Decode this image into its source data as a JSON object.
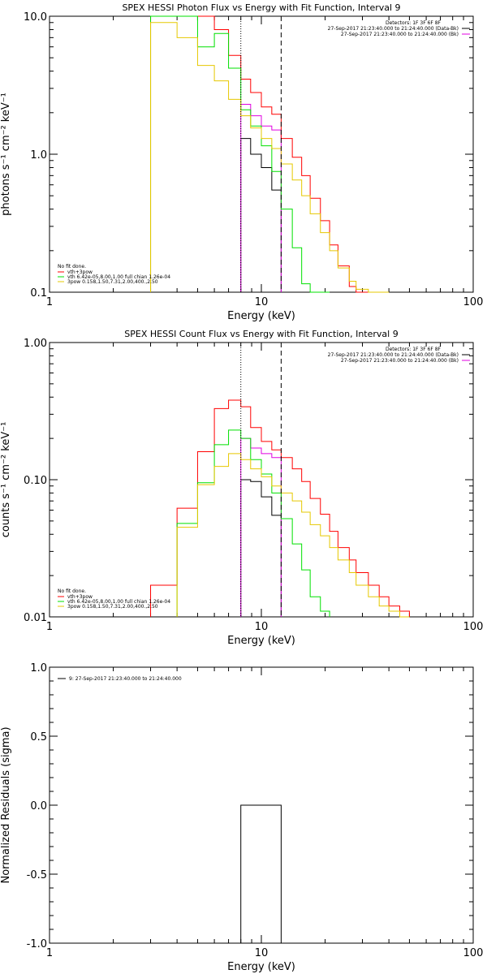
{
  "figure": {
    "background": "#ffffff",
    "colors": {
      "black": "#000000",
      "red": "#ff0000",
      "green": "#00e000",
      "yellow": "#e6c800",
      "magenta": "#e000e0"
    }
  },
  "chart_data": [
    {
      "type": "line",
      "style": "histogram",
      "title": "SPEX HESSI Photon Flux vs Energy with Fit Function, Interval 9",
      "xlabel": "Energy (keV)",
      "ylabel": "photons s⁻¹ cm⁻² keV⁻¹",
      "xscale": "log",
      "yscale": "log",
      "xlim": [
        1,
        100
      ],
      "ylim": [
        0.1,
        10
      ],
      "xticks": [
        1,
        10,
        100
      ],
      "xtick_labels": [
        "1",
        "10",
        "100"
      ],
      "yticks": [
        0.1,
        1,
        10
      ],
      "ytick_labels": [
        "0.1",
        "1.0",
        "10.0"
      ],
      "fit_range_markers": [
        {
          "x": 8,
          "style": "dotted",
          "color": "#000000"
        },
        {
          "x": 12.4,
          "style": "dashed",
          "color": "#000000"
        }
      ],
      "header_text": {
        "detectors": "Detectors: 1F 3F 6F 8F",
        "lines": [
          {
            "text": "27-Sep-2017 21:23:40.000 to 21:24:40.000 (Data-Bk)",
            "color": "#000000"
          },
          {
            "text": "27-Sep-2017 21:23:40.000 to 21:24:40.000 (Bk)",
            "color": "#e000e0"
          }
        ]
      },
      "notes": {
        "status": "No fit done.",
        "lines": [
          {
            "text": "vth+3pow",
            "color": "#ff0000"
          },
          {
            "text": "vth 6.42e-05,8.00,1.00  full chian 1.26e-04",
            "color": "#00e000"
          },
          {
            "text": "3pow 0.158,1.50,7.31,2.00,400.,2.50",
            "color": "#e6c800"
          }
        ]
      },
      "series": [
        {
          "id": "data",
          "color": "#000000",
          "edges": [
            8.0,
            8.9,
            10.0,
            11.2,
            12.4
          ],
          "values": [
            1.3,
            1.0,
            0.8,
            0.55
          ]
        },
        {
          "id": "bk",
          "color": "#e000e0",
          "edges": [
            8.0,
            8.9,
            10.0,
            11.2,
            12.4
          ],
          "values": [
            2.3,
            1.9,
            1.6,
            1.5
          ]
        },
        {
          "id": "total",
          "color": "#ff0000",
          "edges": [
            3.0,
            4.0,
            5.0,
            6.0,
            7.0,
            8.0,
            8.9,
            10.0,
            11.2,
            12.4,
            14.0,
            15.5,
            17.0,
            19.0,
            21.0,
            23.0,
            26.0,
            28.0,
            32.0,
            36.0,
            40.0
          ],
          "values": [
            10.5,
            10.5,
            10.5,
            8.0,
            5.2,
            3.5,
            2.8,
            2.2,
            1.95,
            1.3,
            0.95,
            0.7,
            0.48,
            0.33,
            0.22,
            0.155,
            0.11,
            0.1,
            0.1,
            0.1
          ]
        },
        {
          "id": "thermal",
          "color": "#00e000",
          "edges": [
            3.0,
            4.0,
            5.0,
            6.0,
            7.0,
            8.0,
            8.9,
            10.0,
            11.2,
            12.4,
            14.0,
            15.5,
            17.0,
            19.0,
            21.0
          ],
          "values": [
            10.5,
            10.5,
            6.0,
            7.5,
            4.2,
            2.1,
            1.6,
            1.15,
            0.75,
            0.4,
            0.21,
            0.115,
            0.1,
            0.1
          ]
        },
        {
          "id": "powerlaw",
          "color": "#e6c800",
          "edges": [
            3.0,
            4.0,
            5.0,
            6.0,
            7.0,
            8.0,
            8.9,
            10.0,
            11.2,
            12.4,
            14.0,
            15.5,
            17.0,
            19.0,
            21.0,
            23.0,
            26.0,
            28.0,
            32.0,
            36.0,
            40.0
          ],
          "values": [
            9.0,
            7.0,
            4.4,
            3.4,
            2.5,
            1.9,
            1.55,
            1.3,
            1.1,
            0.85,
            0.65,
            0.5,
            0.37,
            0.27,
            0.2,
            0.15,
            0.12,
            0.105,
            0.1,
            0.1
          ]
        }
      ]
    },
    {
      "type": "line",
      "style": "histogram",
      "title": "SPEX HESSI Count Flux vs Energy with Fit Function, Interval 9",
      "xlabel": "Energy (keV)",
      "ylabel": "counts s⁻¹ cm⁻² keV⁻¹",
      "xscale": "log",
      "yscale": "log",
      "xlim": [
        1,
        100
      ],
      "ylim": [
        0.01,
        1
      ],
      "xticks": [
        1,
        10,
        100
      ],
      "xtick_labels": [
        "1",
        "10",
        "100"
      ],
      "yticks": [
        0.01,
        0.1,
        1
      ],
      "ytick_labels": [
        "0.01",
        "0.10",
        "1.00"
      ],
      "fit_range_markers": [
        {
          "x": 8,
          "style": "dotted",
          "color": "#000000"
        },
        {
          "x": 12.4,
          "style": "dashed",
          "color": "#000000"
        }
      ],
      "header_text": {
        "detectors": "Detectors: 1F 3F 6F 8F",
        "lines": [
          {
            "text": "27-Sep-2017 21:23:40.000 to 21:24:40.000 (Data-Bk)",
            "color": "#000000"
          },
          {
            "text": "27-Sep-2017 21:23:40.000 to 21:24:40.000 (Bk)",
            "color": "#e000e0"
          }
        ]
      },
      "notes": {
        "status": "No fit done.",
        "lines": [
          {
            "text": "vth+3pow",
            "color": "#ff0000"
          },
          {
            "text": "vth 6.42e-05,8.00,1.00  full chian 1.26e-04",
            "color": "#00e000"
          },
          {
            "text": "3pow 0.158,1.50,7.31,2.00,400.,2.50",
            "color": "#e6c800"
          }
        ]
      },
      "series": [
        {
          "id": "data",
          "color": "#000000",
          "edges": [
            8.0,
            8.9,
            10.0,
            11.2,
            12.4
          ],
          "values": [
            0.1,
            0.097,
            0.075,
            0.055
          ]
        },
        {
          "id": "bk",
          "color": "#e000e0",
          "edges": [
            8.0,
            8.9,
            10.0,
            11.2,
            12.4
          ],
          "values": [
            0.2,
            0.17,
            0.155,
            0.145
          ]
        },
        {
          "id": "total",
          "color": "#ff0000",
          "edges": [
            3.0,
            4.0,
            5.0,
            6.0,
            7.0,
            8.0,
            8.9,
            10.0,
            11.2,
            12.4,
            14.0,
            15.5,
            17.0,
            19.0,
            21.0,
            23.0,
            26.0,
            28.0,
            32.0,
            36.0,
            40.0,
            45.0,
            50.0
          ],
          "values": [
            0.017,
            0.062,
            0.16,
            0.33,
            0.38,
            0.34,
            0.24,
            0.19,
            0.165,
            0.145,
            0.12,
            0.097,
            0.073,
            0.056,
            0.042,
            0.032,
            0.026,
            0.021,
            0.017,
            0.014,
            0.012,
            0.011
          ]
        },
        {
          "id": "thermal",
          "color": "#00e000",
          "edges": [
            4.0,
            5.0,
            6.0,
            7.0,
            8.0,
            8.9,
            10.0,
            11.2,
            12.4,
            14.0,
            15.5,
            17.0,
            19.0,
            21.0
          ],
          "values": [
            0.048,
            0.095,
            0.18,
            0.23,
            0.2,
            0.14,
            0.11,
            0.08,
            0.052,
            0.034,
            0.022,
            0.014,
            0.011
          ]
        },
        {
          "id": "powerlaw",
          "color": "#e6c800",
          "edges": [
            4.0,
            5.0,
            6.0,
            7.0,
            8.0,
            8.9,
            10.0,
            11.2,
            12.4,
            14.0,
            15.5,
            17.0,
            19.0,
            21.0,
            23.0,
            26.0,
            28.0,
            32.0,
            36.0,
            40.0,
            45.0,
            50.0
          ],
          "values": [
            0.045,
            0.092,
            0.125,
            0.155,
            0.14,
            0.12,
            0.105,
            0.09,
            0.08,
            0.07,
            0.058,
            0.047,
            0.039,
            0.032,
            0.026,
            0.021,
            0.017,
            0.014,
            0.012,
            0.011,
            0.01
          ]
        }
      ]
    },
    {
      "type": "line",
      "style": "histogram",
      "title": "",
      "xlabel": "Energy (keV)",
      "ylabel": "Normalized Residuals (sigma)",
      "xscale": "log",
      "yscale": "linear",
      "xlim": [
        1,
        100
      ],
      "ylim": [
        -1,
        1
      ],
      "xticks": [
        1,
        10,
        100
      ],
      "xtick_labels": [
        "1",
        "10",
        "100"
      ],
      "yticks": [
        -1,
        -0.5,
        0,
        0.5,
        1
      ],
      "ytick_labels": [
        "-1.0",
        "-0.5",
        "0.0",
        "0.5",
        "1.0"
      ],
      "legend": {
        "text": "9: 27-Sep-2017 21:23:40.000 to 21:24:40.000",
        "color": "#000000",
        "position": "top-left"
      },
      "residual_box": {
        "x_start": 8,
        "x_end": 12.4,
        "y_level": 0,
        "y_min": -1
      }
    }
  ]
}
